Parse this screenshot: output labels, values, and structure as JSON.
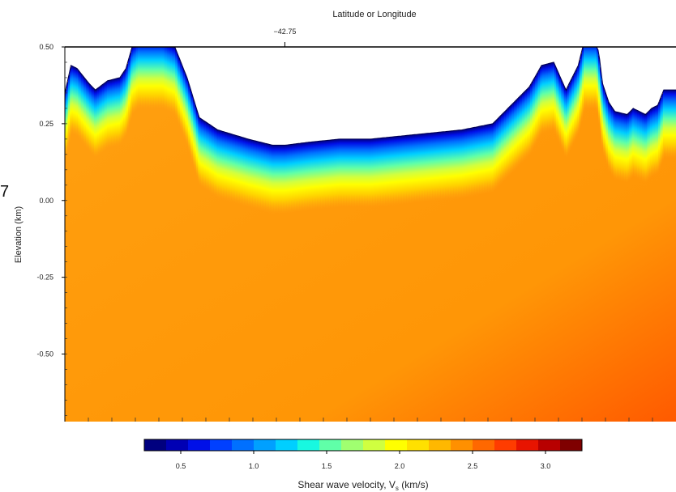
{
  "stray_char": "7",
  "chart_data": {
    "type": "heatmap",
    "title": "",
    "top_axis_label": "Latitude or Longitude",
    "top_ticks": [
      {
        "label": "−42.75",
        "position": 0.36
      }
    ],
    "ylabel": "Elevation (km)",
    "ylim": [
      -0.72,
      0.5
    ],
    "y_ticks": [
      {
        "value": 0.5,
        "label": "0.50"
      },
      {
        "value": 0.25,
        "label": "0.25"
      },
      {
        "value": 0.0,
        "label": "0.00"
      },
      {
        "value": -0.25,
        "label": "-0.25"
      },
      {
        "value": -0.5,
        "label": "-0.50"
      }
    ],
    "surface_profile": {
      "x": [
        0.0,
        0.01,
        0.02,
        0.04,
        0.05,
        0.07,
        0.09,
        0.1,
        0.11,
        0.12,
        0.14,
        0.16,
        0.18,
        0.2,
        0.22,
        0.25,
        0.3,
        0.34,
        0.36,
        0.4,
        0.45,
        0.5,
        0.55,
        0.6,
        0.65,
        0.7,
        0.73,
        0.76,
        0.78,
        0.8,
        0.82,
        0.84,
        0.85,
        0.86,
        0.87,
        0.875,
        0.88,
        0.89,
        0.9,
        0.92,
        0.93,
        0.94,
        0.95,
        0.96,
        0.97,
        0.98,
        1.0
      ],
      "elevation": [
        0.35,
        0.44,
        0.43,
        0.38,
        0.36,
        0.39,
        0.4,
        0.43,
        0.5,
        0.52,
        0.52,
        0.52,
        0.5,
        0.4,
        0.27,
        0.23,
        0.2,
        0.18,
        0.18,
        0.19,
        0.2,
        0.2,
        0.21,
        0.22,
        0.23,
        0.25,
        0.31,
        0.37,
        0.44,
        0.45,
        0.36,
        0.44,
        0.52,
        0.52,
        0.52,
        0.46,
        0.38,
        0.32,
        0.29,
        0.28,
        0.3,
        0.29,
        0.28,
        0.3,
        0.31,
        0.36,
        0.36
      ]
    },
    "vs_model": {
      "surface_vs": 0.3,
      "background_vs": 2.55,
      "gradient_depth_km": 0.15,
      "deep_corner_vs": 2.85
    },
    "colorbar": {
      "label_main": "Shear wave velocity, V",
      "label_sub": "s",
      "label_unit": " (km/s)",
      "range": [
        0.25,
        3.25
      ],
      "bins": 20,
      "ticks": [
        {
          "value": 0.5,
          "label": "0.5"
        },
        {
          "value": 1.0,
          "label": "1.0"
        },
        {
          "value": 1.5,
          "label": "1.5"
        },
        {
          "value": 2.0,
          "label": "2.0"
        },
        {
          "value": 2.5,
          "label": "2.5"
        },
        {
          "value": 3.0,
          "label": "3.0"
        }
      ],
      "colors": [
        "#00007f",
        "#0000b4",
        "#0010e8",
        "#0040ff",
        "#0070ff",
        "#00a0ff",
        "#00cfff",
        "#18f8e0",
        "#60ffa8",
        "#a0ff70",
        "#d0ff40",
        "#ffff00",
        "#ffe000",
        "#ffb800",
        "#ff9000",
        "#ff6800",
        "#ff3c00",
        "#e81400",
        "#b80000",
        "#7f0000"
      ]
    },
    "grid": false,
    "legend": "colorbar-bottom"
  }
}
